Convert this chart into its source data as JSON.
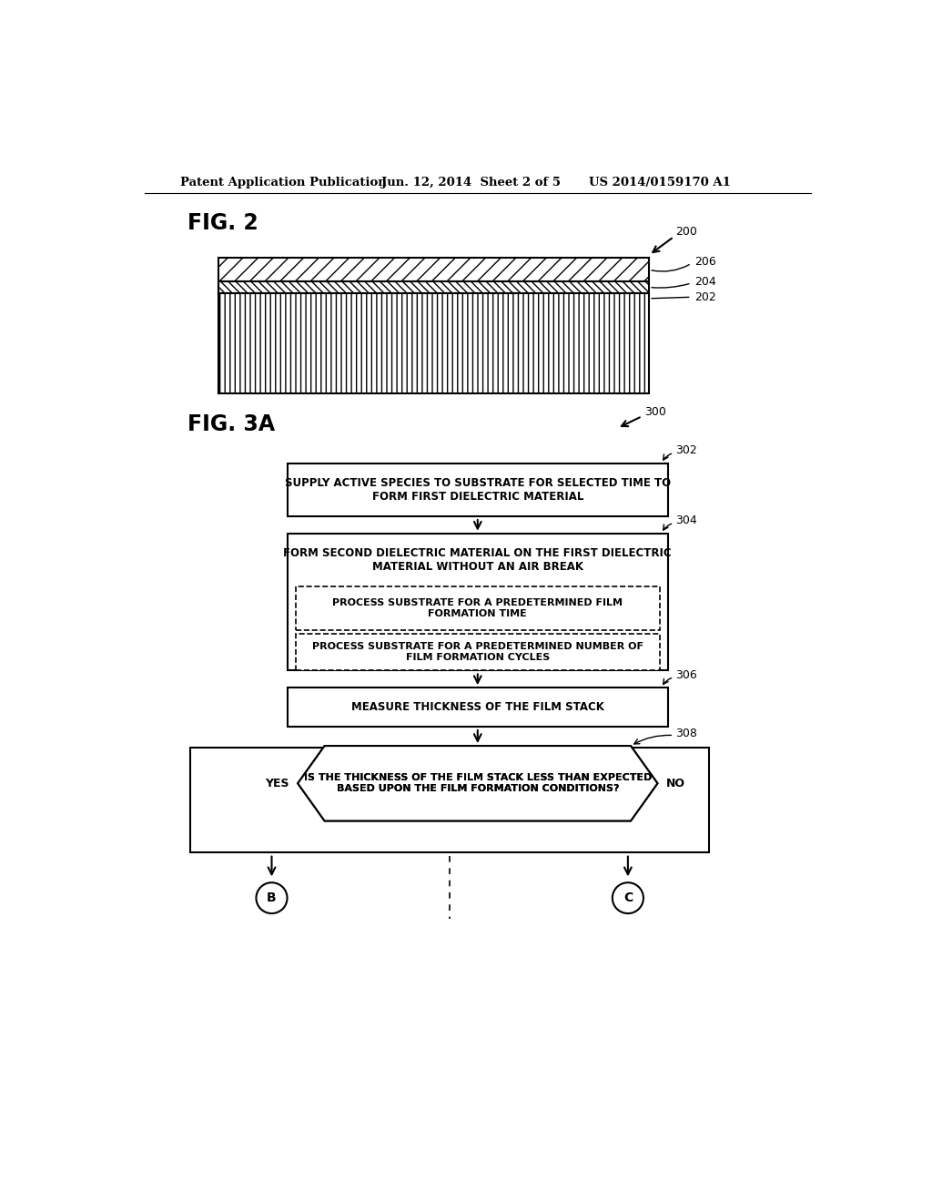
{
  "bg_color": "#ffffff",
  "header_text": "Patent Application Publication",
  "header_date": "Jun. 12, 2014  Sheet 2 of 5",
  "header_patent": "US 2014/0159170 A1",
  "fig2_label": "FIG. 2",
  "fig3a_label": "FIG. 3A",
  "box302_text": "SUPPLY ACTIVE SPECIES TO SUBSTRATE FOR SELECTED TIME TO\nFORM FIRST DIELECTRIC MATERIAL",
  "box304_title": "FORM SECOND DIELECTRIC MATERIAL ON THE FIRST DIELECTRIC\nMATERIAL WITHOUT AN AIR BREAK",
  "box304_sub1": "PROCESS SUBSTRATE FOR A PREDETERMINED FILM\nFORMATION TIME",
  "box304_sub2": "PROCESS SUBSTRATE FOR A PREDETERMINED NUMBER OF\nFILM FORMATION CYCLES",
  "box306_text": "MEASURE THICKNESS OF THE FILM STACK",
  "diamond308_text": "IS THE THICKNESS OF THE FILM STACK LESS THAN EXPECTED\nBASED UPON THE FILM FORMATION CONDITIONS?",
  "yes_label": "YES",
  "no_label": "NO",
  "circle_b": "B",
  "circle_c": "C",
  "ref200": "200",
  "ref202": "202",
  "ref204": "204",
  "ref206": "206",
  "ref300": "300",
  "ref302": "302",
  "ref304": "304",
  "ref306": "306",
  "ref308": "308"
}
